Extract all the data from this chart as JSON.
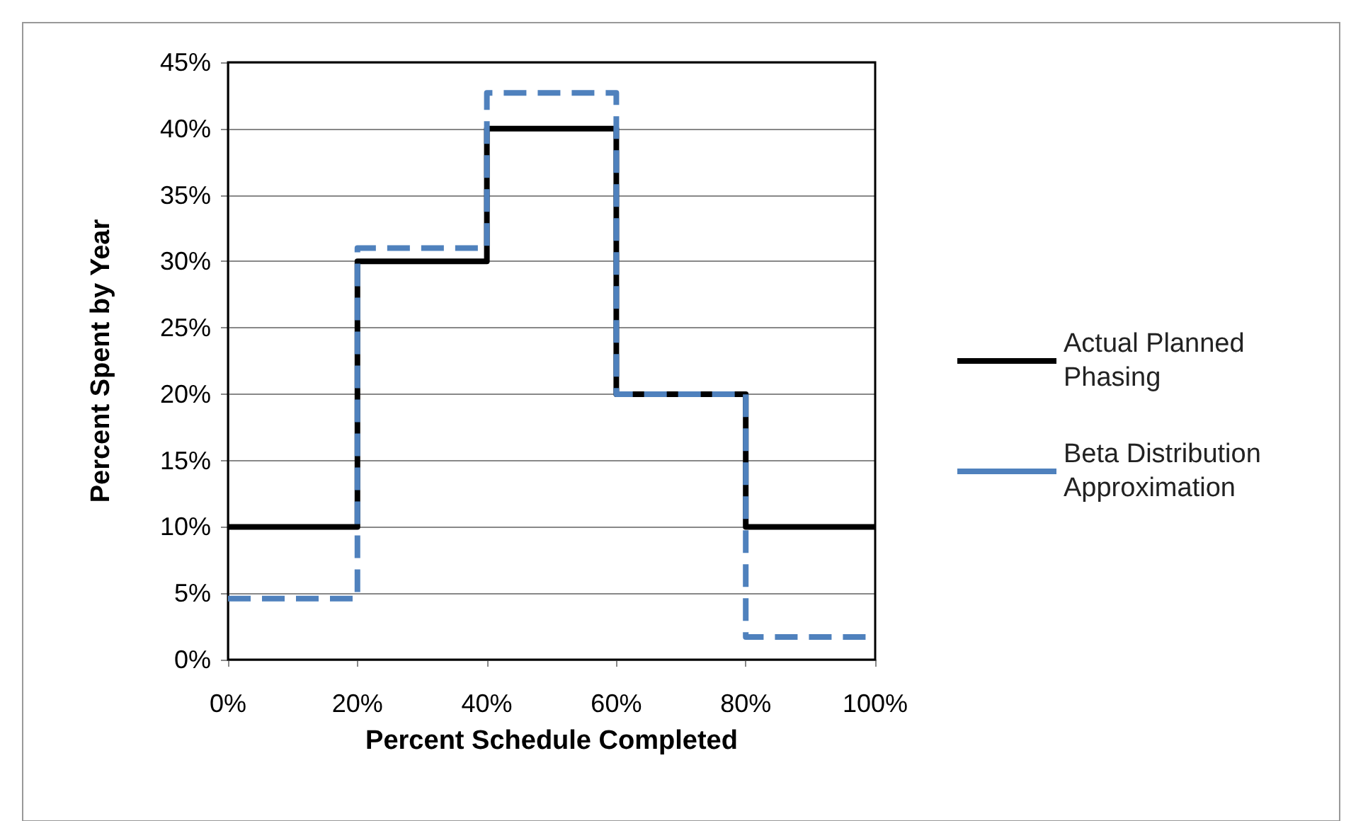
{
  "chart_data": {
    "type": "step",
    "xlabel": "Percent Schedule Completed",
    "ylabel": "Percent Spent by Year",
    "x": [
      0,
      20,
      40,
      60,
      80,
      100
    ],
    "series": [
      {
        "name": "Actual Planned Phasing",
        "color": "#000000",
        "line_style": "solid",
        "values": [
          10,
          30,
          40,
          20,
          10,
          10
        ]
      },
      {
        "name": "Beta Distribution Approximation",
        "color": "#4f81bd",
        "line_style": "dashed",
        "values": [
          4.6,
          31,
          42.7,
          20,
          1.7,
          1.7
        ]
      }
    ],
    "xlim": [
      0,
      100
    ],
    "xticks": [
      {
        "value": 0,
        "label": "0%"
      },
      {
        "value": 20,
        "label": "20%"
      },
      {
        "value": 40,
        "label": "40%"
      },
      {
        "value": 60,
        "label": "60%"
      },
      {
        "value": 80,
        "label": "80%"
      },
      {
        "value": 100,
        "label": "100%"
      }
    ],
    "ylim": [
      0,
      45
    ],
    "yticks": [
      {
        "value": 0,
        "label": "0%"
      },
      {
        "value": 5,
        "label": "5%"
      },
      {
        "value": 10,
        "label": "10%"
      },
      {
        "value": 15,
        "label": "15%"
      },
      {
        "value": 20,
        "label": "20%"
      },
      {
        "value": 25,
        "label": "25%"
      },
      {
        "value": 30,
        "label": "30%"
      },
      {
        "value": 35,
        "label": "35%"
      },
      {
        "value": 40,
        "label": "40%"
      },
      {
        "value": 45,
        "label": "45%"
      }
    ],
    "grid": "y",
    "legend": "right",
    "marker": "none"
  }
}
